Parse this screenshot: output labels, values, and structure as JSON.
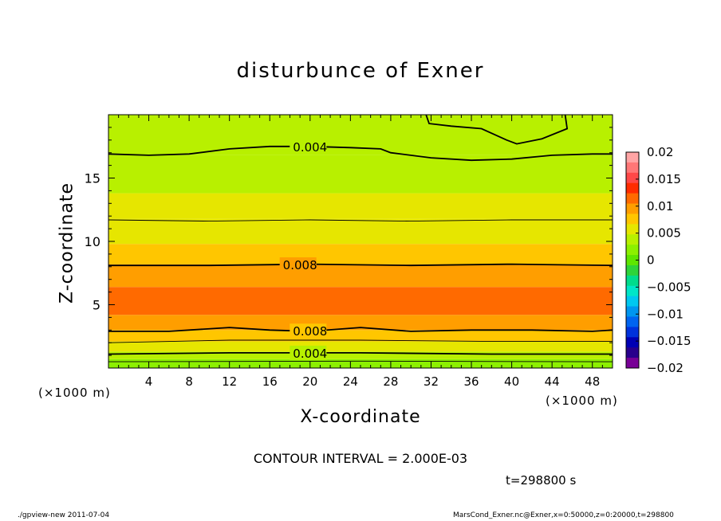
{
  "chart_data": {
    "type": "heatmap",
    "title": "disturbunce of Exner",
    "xlabel": "X-coordinate",
    "ylabel": "Z-coordinate",
    "x_unit": "(×1000 m)",
    "y_unit": "(×1000 m)",
    "xlim": [
      0,
      50
    ],
    "ylim": [
      0,
      20
    ],
    "x_ticks": [
      4,
      8,
      12,
      16,
      20,
      24,
      28,
      32,
      36,
      40,
      44,
      48
    ],
    "y_ticks": [
      5,
      10,
      15
    ],
    "colorbar": {
      "min": -0.02,
      "max": 0.02,
      "tick_labels": [
        "0.02",
        "0.015",
        "0.01",
        "0.005",
        "0",
        "−0.005",
        "−0.01",
        "−0.015",
        "−0.02"
      ],
      "tick_values": [
        0.02,
        0.015,
        0.01,
        0.005,
        0,
        -0.005,
        -0.01,
        -0.015,
        -0.02
      ],
      "colors": [
        "#FFA5A5",
        "#FF7777",
        "#FF4848",
        "#FF2C00",
        "#FF6A00",
        "#FF9E00",
        "#FFC600",
        "#E6E600",
        "#B8F000",
        "#8CF000",
        "#5EE600",
        "#2ED43A",
        "#00DC8C",
        "#00E6C8",
        "#00C8F0",
        "#0096F0",
        "#0064F0",
        "#0032DC",
        "#0000B4",
        "#28008C",
        "#780096"
      ]
    },
    "bands": [
      {
        "z0": 0.0,
        "z1": 0.7,
        "value": 0.002
      },
      {
        "z0": 0.7,
        "z1": 1.3,
        "value": 0.003
      },
      {
        "z0": 1.3,
        "z1": 2.1,
        "value": 0.005
      },
      {
        "z0": 2.1,
        "z1": 3.0,
        "value": 0.007
      },
      {
        "z0": 3.0,
        "z1": 4.2,
        "value": 0.009
      },
      {
        "z0": 4.2,
        "z1": 6.4,
        "value": 0.0105
      },
      {
        "z0": 6.4,
        "z1": 8.2,
        "value": 0.0095
      },
      {
        "z0": 8.2,
        "z1": 9.8,
        "value": 0.0075
      },
      {
        "z0": 9.8,
        "z1": 11.8,
        "value": 0.0065
      },
      {
        "z0": 11.8,
        "z1": 13.8,
        "value": 0.0055
      },
      {
        "z0": 13.8,
        "z1": 16.8,
        "value": 0.0045
      },
      {
        "z0": 16.8,
        "z1": 20.0,
        "value": 0.0035
      }
    ],
    "contours": [
      {
        "level": 0.004,
        "label": "0.004",
        "label_x": 18,
        "points": [
          [
            0,
            16.9
          ],
          [
            4,
            16.8
          ],
          [
            8,
            16.9
          ],
          [
            12,
            17.3
          ],
          [
            16,
            17.5
          ],
          [
            20,
            17.5
          ],
          [
            24,
            17.4
          ],
          [
            27,
            17.3
          ],
          [
            28,
            17.0
          ],
          [
            32,
            16.6
          ],
          [
            36,
            16.4
          ],
          [
            40,
            16.5
          ],
          [
            44,
            16.8
          ],
          [
            48,
            16.9
          ],
          [
            50,
            16.9
          ]
        ]
      },
      {
        "level": 0.006,
        "label": "",
        "points": [
          [
            0,
            11.7
          ],
          [
            10,
            11.6
          ],
          [
            20,
            11.7
          ],
          [
            30,
            11.6
          ],
          [
            40,
            11.7
          ],
          [
            50,
            11.7
          ]
        ]
      },
      {
        "level": 0.008,
        "label": "0.008",
        "label_x": 17,
        "points": [
          [
            0,
            8.1
          ],
          [
            10,
            8.1
          ],
          [
            20,
            8.2
          ],
          [
            30,
            8.1
          ],
          [
            40,
            8.2
          ],
          [
            50,
            8.1
          ]
        ]
      },
      {
        "level": 0.008,
        "label": "0.008",
        "label_x": 18,
        "points": [
          [
            0,
            2.9
          ],
          [
            6,
            2.9
          ],
          [
            12,
            3.2
          ],
          [
            16,
            3.0
          ],
          [
            20,
            2.9
          ],
          [
            25,
            3.2
          ],
          [
            30,
            2.9
          ],
          [
            36,
            3.0
          ],
          [
            42,
            3.0
          ],
          [
            48,
            2.9
          ],
          [
            50,
            3.0
          ]
        ]
      },
      {
        "level": 0.006,
        "label": "",
        "points": [
          [
            0,
            2.0
          ],
          [
            12,
            2.2
          ],
          [
            25,
            2.2
          ],
          [
            38,
            2.1
          ],
          [
            50,
            2.1
          ]
        ]
      },
      {
        "level": 0.004,
        "label": "0.004",
        "label_x": 18,
        "points": [
          [
            0,
            1.1
          ],
          [
            12,
            1.2
          ],
          [
            25,
            1.2
          ],
          [
            38,
            1.1
          ],
          [
            50,
            1.1
          ]
        ]
      },
      {
        "level": 0.003,
        "label": "",
        "points": [
          [
            0,
            0.5
          ],
          [
            25,
            0.55
          ],
          [
            50,
            0.5
          ]
        ]
      }
    ],
    "closed_contours": [
      {
        "level": 0.004,
        "points": [
          [
            31.5,
            20
          ],
          [
            31.8,
            19.3
          ],
          [
            34,
            19.1
          ],
          [
            37,
            18.9
          ],
          [
            39.5,
            18.0
          ],
          [
            40.5,
            17.7
          ],
          [
            43,
            18.1
          ],
          [
            45.5,
            18.9
          ],
          [
            45.3,
            20
          ]
        ]
      }
    ],
    "annotation": "CONTOUR INTERVAL = 2.000E-03",
    "time_label": "t=298800 s"
  },
  "footer": {
    "left": "./gpview-new   2011-07-04",
    "right": "MarsCond_Exner.nc@Exner,x=0:50000,z=0:20000,t=298800"
  }
}
